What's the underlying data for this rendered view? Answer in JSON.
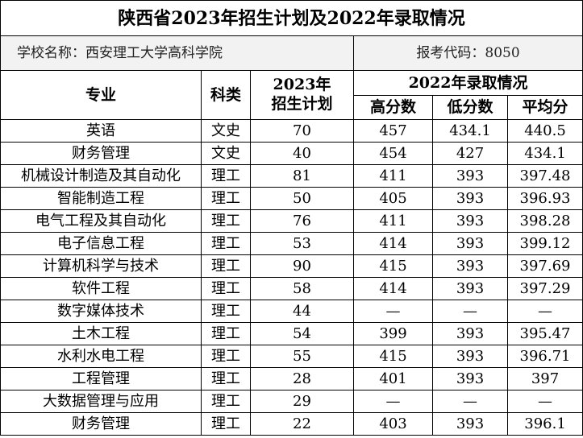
{
  "title": "陕西省2023年招生计划及2022年录取情况",
  "school_label": "学校名称：西安理工大学高科学院",
  "code_label": "报考代码：8050",
  "headers": {
    "major": "专业",
    "category": "科类",
    "plan_line1": "2023年",
    "plan_line2": "招生计划",
    "admission": "2022年录取情况",
    "high": "高分数",
    "low": "低分数",
    "avg": "平均分"
  },
  "rows": [
    {
      "major": "英语",
      "category": "文史",
      "plan": "70",
      "high": "457",
      "low": "434.1",
      "avg": "440.5"
    },
    {
      "major": "财务管理",
      "category": "文史",
      "plan": "40",
      "high": "454",
      "low": "427",
      "avg": "434.1"
    },
    {
      "major": "机械设计制造及其自动化",
      "category": "理工",
      "plan": "81",
      "high": "411",
      "low": "393",
      "avg": "397.48"
    },
    {
      "major": "智能制造工程",
      "category": "理工",
      "plan": "50",
      "high": "405",
      "low": "393",
      "avg": "396.93"
    },
    {
      "major": "电气工程及其自动化",
      "category": "理工",
      "plan": "76",
      "high": "411",
      "low": "393",
      "avg": "398.28"
    },
    {
      "major": "电子信息工程",
      "category": "理工",
      "plan": "53",
      "high": "414",
      "low": "393",
      "avg": "399.12"
    },
    {
      "major": "计算机科学与技术",
      "category": "理工",
      "plan": "90",
      "high": "415",
      "low": "393",
      "avg": "397.69"
    },
    {
      "major": "软件工程",
      "category": "理工",
      "plan": "58",
      "high": "414",
      "low": "393",
      "avg": "397.29"
    },
    {
      "major": "数字媒体技术",
      "category": "理工",
      "plan": "44",
      "high": "—",
      "low": "—",
      "avg": "—"
    },
    {
      "major": "土木工程",
      "category": "理工",
      "plan": "54",
      "high": "399",
      "low": "393",
      "avg": "395.47"
    },
    {
      "major": "水利水电工程",
      "category": "理工",
      "plan": "55",
      "high": "415",
      "low": "393",
      "avg": "396.71"
    },
    {
      "major": "工程管理",
      "category": "理工",
      "plan": "28",
      "high": "401",
      "low": "393",
      "avg": "397"
    },
    {
      "major": "大数据管理与应用",
      "category": "理工",
      "plan": "29",
      "high": "—",
      "low": "—",
      "avg": "—"
    },
    {
      "major": "财务管理",
      "category": "理工",
      "plan": "22",
      "high": "403",
      "low": "393",
      "avg": "396.1"
    }
  ]
}
